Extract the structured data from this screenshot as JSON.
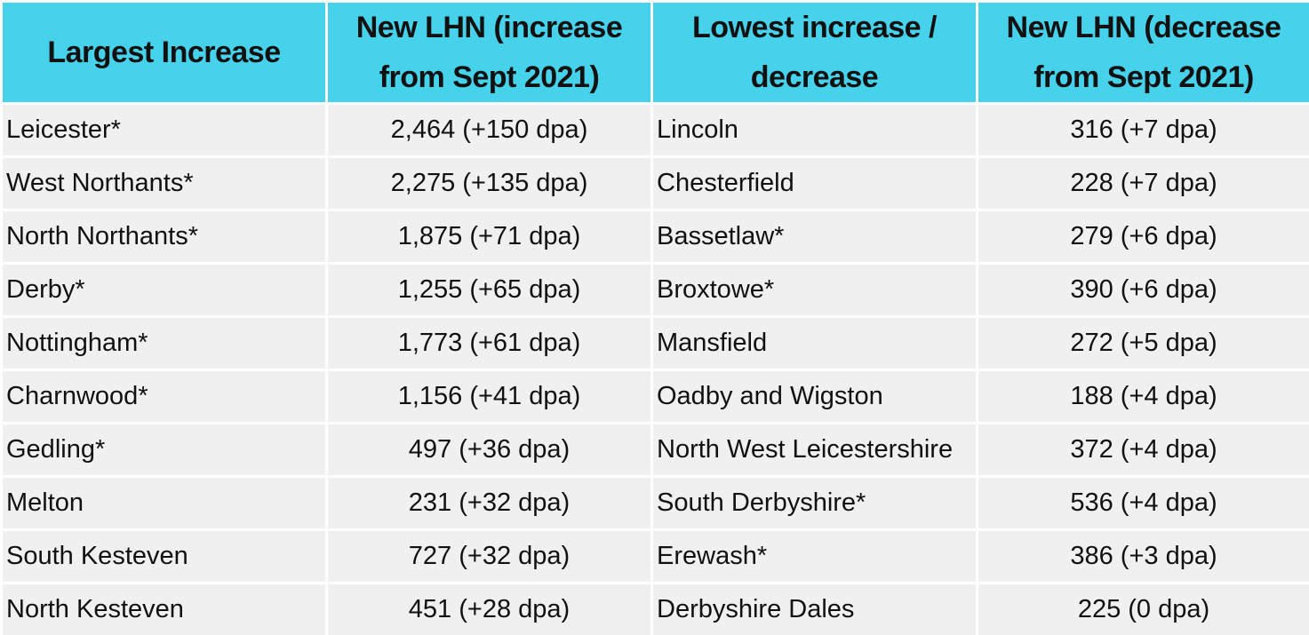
{
  "table": {
    "headers": [
      "Largest Increase",
      "New LHN (increase from Sept 2021)",
      "Lowest increase / decrease",
      "New LHN (decrease from Sept 2021)"
    ],
    "rows": [
      [
        "Leicester*",
        "2,464 (+150 dpa)",
        "Lincoln",
        "316 (+7 dpa)"
      ],
      [
        "West Northants*",
        "2,275 (+135 dpa)",
        "Chesterfield",
        "228 (+7 dpa)"
      ],
      [
        "North Northants*",
        "1,875 (+71 dpa)",
        "Bassetlaw*",
        "279 (+6 dpa)"
      ],
      [
        "Derby*",
        "1,255 (+65 dpa)",
        "Broxtowe*",
        "390 (+6 dpa)"
      ],
      [
        "Nottingham*",
        "1,773 (+61 dpa)",
        "Mansfield",
        "272 (+5 dpa)"
      ],
      [
        "Charnwood*",
        "1,156 (+41 dpa)",
        "Oadby and Wigston",
        "188 (+4 dpa)"
      ],
      [
        "Gedling*",
        "497 (+36 dpa)",
        "North West Leicestershire",
        "372 (+4 dpa)"
      ],
      [
        "Melton",
        "231 (+32 dpa)",
        "South Derbyshire*",
        "536 (+4 dpa)"
      ],
      [
        "South Kesteven",
        "727 (+32 dpa)",
        "Erewash*",
        "386 (+3 dpa)"
      ],
      [
        "North Kesteven",
        "451 (+28 dpa)",
        "Derbyshire Dales",
        "225 (0 dpa)"
      ]
    ]
  },
  "colors": {
    "header_bg": "#45d2ea",
    "cell_bg": "#f0f0f0",
    "grid": "#ffffff"
  }
}
